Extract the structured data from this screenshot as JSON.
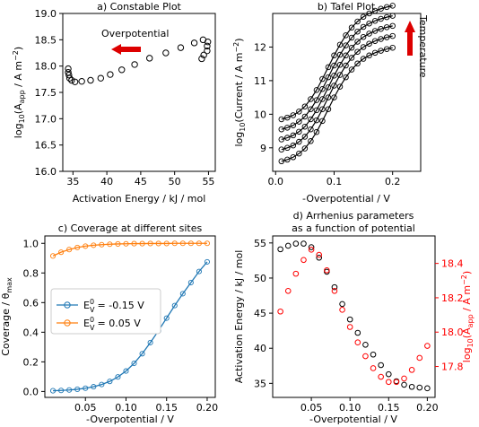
{
  "chart_data": [
    {
      "panel": "a",
      "type": "scatter",
      "title": "a) Constable Plot",
      "xlabel": "Activation Energy / kJ / mol",
      "ylabel": "log10(Aapp / A m^-2)",
      "xlim": [
        33.5,
        56
      ],
      "ylim": [
        16.0,
        19.0
      ],
      "xticks": [
        35,
        40,
        45,
        50,
        55
      ],
      "yticks": [
        16.0,
        16.5,
        17.0,
        17.5,
        18.0,
        18.5,
        19.0
      ],
      "points": [
        [
          34.3,
          17.95
        ],
        [
          34.3,
          17.88
        ],
        [
          34.4,
          17.83
        ],
        [
          34.5,
          17.77
        ],
        [
          34.8,
          17.73
        ],
        [
          35.3,
          17.7
        ],
        [
          36.3,
          17.71
        ],
        [
          37.6,
          17.73
        ],
        [
          39.1,
          17.77
        ],
        [
          40.5,
          17.84
        ],
        [
          42.2,
          17.93
        ],
        [
          44.1,
          18.03
        ],
        [
          46.3,
          18.15
        ],
        [
          48.7,
          18.25
        ],
        [
          50.9,
          18.35
        ],
        [
          52.9,
          18.44
        ],
        [
          54.2,
          18.5
        ],
        [
          54.9,
          18.46
        ],
        [
          54.8,
          18.38
        ],
        [
          54.8,
          18.29
        ],
        [
          54.3,
          18.21
        ],
        [
          54.0,
          18.14
        ]
      ],
      "annotation": "Overpotential",
      "annotation_arrow": "left",
      "marker": "open-circle",
      "marker_color": "#000000",
      "arrow_color": "#dd0000"
    },
    {
      "panel": "b",
      "type": "line",
      "title": "b) Tafel Plot",
      "xlabel": "-Overpotential / V",
      "ylabel": "log10(Current / A m^-2)",
      "xlim": [
        -0.005,
        0.248
      ],
      "ylim": [
        8.3,
        13.0
      ],
      "xticks": [
        0.0,
        0.1,
        0.2
      ],
      "yticks": [
        9,
        10,
        11,
        12
      ],
      "x": [
        0.01,
        0.02,
        0.03,
        0.04,
        0.05,
        0.06,
        0.07,
        0.08,
        0.09,
        0.1,
        0.11,
        0.12,
        0.13,
        0.14,
        0.15,
        0.16,
        0.17,
        0.18,
        0.19,
        0.2
      ],
      "series": [
        {
          "values": [
            8.6,
            8.65,
            8.72,
            8.83,
            8.98,
            9.2,
            9.47,
            9.8,
            10.15,
            10.5,
            10.82,
            11.1,
            11.33,
            11.51,
            11.65,
            11.75,
            11.83,
            11.89,
            11.94,
            11.98
          ]
        },
        {
          "values": [
            8.95,
            9.0,
            9.07,
            9.18,
            9.33,
            9.55,
            9.82,
            10.15,
            10.5,
            10.85,
            11.17,
            11.45,
            11.68,
            11.86,
            12.0,
            12.1,
            12.18,
            12.24,
            12.29,
            12.33
          ]
        },
        {
          "values": [
            9.25,
            9.3,
            9.37,
            9.48,
            9.63,
            9.85,
            10.12,
            10.45,
            10.8,
            11.15,
            11.47,
            11.75,
            11.98,
            12.16,
            12.3,
            12.4,
            12.48,
            12.54,
            12.59,
            12.63
          ]
        },
        {
          "values": [
            9.55,
            9.6,
            9.67,
            9.78,
            9.93,
            10.15,
            10.42,
            10.75,
            11.1,
            11.45,
            11.77,
            12.05,
            12.28,
            12.46,
            12.6,
            12.7,
            12.78,
            12.84,
            12.89,
            12.93
          ]
        },
        {
          "values": [
            9.85,
            9.9,
            9.97,
            10.08,
            10.23,
            10.45,
            10.72,
            11.05,
            11.4,
            11.75,
            12.07,
            12.35,
            12.58,
            12.76,
            12.9,
            13.0,
            13.08,
            13.14,
            13.19,
            13.23
          ]
        }
      ],
      "annotation": "Temperature",
      "annotation_arrow": "up",
      "marker": "open-circle",
      "line_color": "#000000",
      "arrow_color": "#dd0000"
    },
    {
      "panel": "c",
      "type": "line",
      "title": "c) Coverage at different sites",
      "xlabel": "-Overpotential / V",
      "ylabel": "Coverage / θmax",
      "xlim": [
        0.0,
        0.21
      ],
      "ylim": [
        -0.04,
        1.05
      ],
      "xticks": [
        0.05,
        0.1,
        0.15,
        0.2
      ],
      "yticks": [
        0.0,
        0.2,
        0.4,
        0.6,
        0.8,
        1.0
      ],
      "x": [
        0.01,
        0.02,
        0.03,
        0.04,
        0.05,
        0.06,
        0.07,
        0.08,
        0.09,
        0.1,
        0.11,
        0.12,
        0.13,
        0.14,
        0.15,
        0.16,
        0.17,
        0.18,
        0.19,
        0.2
      ],
      "series": [
        {
          "name": "E0V = -0.15 V",
          "legend_main": "E",
          "legend_sup": "0",
          "legend_sub": "V",
          "legend_value": "= -0.15 V",
          "color": "#1f77b4",
          "values": [
            0.005,
            0.007,
            0.01,
            0.015,
            0.022,
            0.032,
            0.047,
            0.068,
            0.098,
            0.138,
            0.19,
            0.255,
            0.33,
            0.41,
            0.495,
            0.58,
            0.66,
            0.735,
            0.81,
            0.875
          ]
        },
        {
          "name": "E0V = 0.05 V",
          "legend_main": "E",
          "legend_sup": "0",
          "legend_sub": "V",
          "legend_value": "= 0.05 V",
          "color": "#ff7f0e",
          "values": [
            0.915,
            0.94,
            0.958,
            0.972,
            0.981,
            0.987,
            0.991,
            0.994,
            0.996,
            0.997,
            0.998,
            0.998,
            0.999,
            0.999,
            0.999,
            1.0,
            1.0,
            1.0,
            1.0,
            1.0
          ]
        }
      ],
      "legend_position": "center-left"
    },
    {
      "panel": "d",
      "type": "scatter",
      "title": "d) Arrhenius parameters\nas a function of potential",
      "title_lines": [
        "d) Arrhenius parameters",
        "as a function of potential"
      ],
      "xlabel": "-Overpotential / V",
      "ylabel": "Activation Energy / kJ / mol",
      "ylabel_right": "log10(Aapp / A m^-2)",
      "xlim": [
        0.0,
        0.21
      ],
      "ylim": [
        33,
        56
      ],
      "ylim_right": [
        17.62,
        18.56
      ],
      "xticks": [
        0.05,
        0.1,
        0.15,
        0.2
      ],
      "yticks": [
        35,
        40,
        45,
        50,
        55
      ],
      "yticks_right": [
        17.8,
        18.0,
        18.2,
        18.4
      ],
      "x": [
        0.01,
        0.02,
        0.03,
        0.04,
        0.05,
        0.06,
        0.07,
        0.08,
        0.09,
        0.1,
        0.11,
        0.12,
        0.13,
        0.14,
        0.15,
        0.16,
        0.17,
        0.18,
        0.19,
        0.2
      ],
      "series": [
        {
          "axis": "left",
          "color": "#000000",
          "values": [
            54.1,
            54.6,
            54.9,
            54.9,
            54.4,
            52.9,
            50.9,
            48.7,
            46.3,
            44.1,
            42.2,
            40.5,
            39.1,
            37.6,
            36.3,
            35.3,
            34.8,
            34.5,
            34.4,
            34.3
          ]
        },
        {
          "axis": "right",
          "color": "#ff0000",
          "values": [
            18.12,
            18.24,
            18.34,
            18.42,
            18.48,
            18.45,
            18.36,
            18.24,
            18.13,
            18.03,
            17.94,
            17.86,
            17.79,
            17.74,
            17.71,
            17.71,
            17.73,
            17.78,
            17.85,
            17.92
          ]
        }
      ]
    }
  ]
}
